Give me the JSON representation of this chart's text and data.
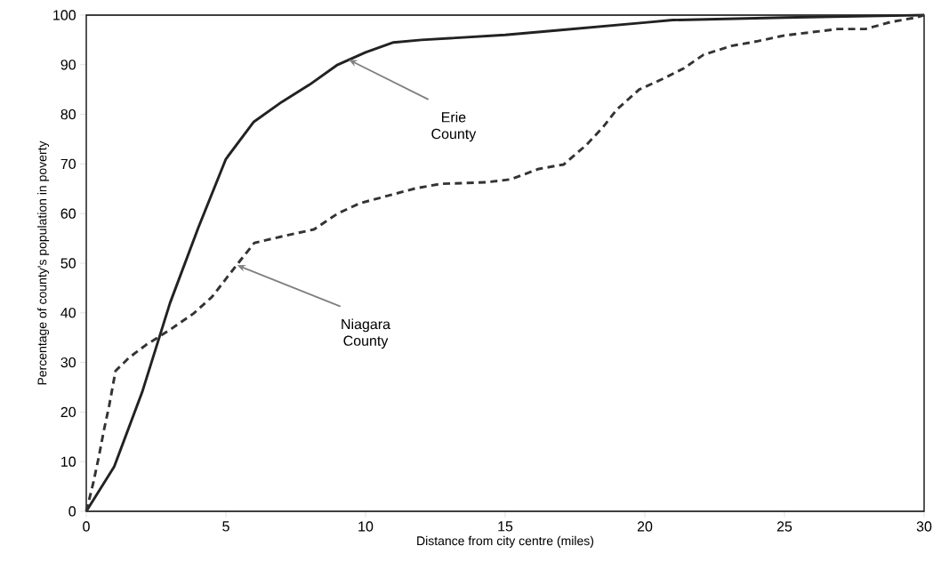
{
  "chart_data": {
    "type": "line",
    "xlabel": "Distance from city centre (miles)",
    "ylabel": "Percentage of county's population in poverty",
    "xlim": [
      0,
      30
    ],
    "xticks": [
      0,
      5,
      10,
      15,
      20,
      25,
      30
    ],
    "ylim": [
      0,
      100
    ],
    "yticks": [
      0,
      10,
      20,
      30,
      40,
      50,
      60,
      70,
      80,
      90,
      100
    ],
    "grid": false,
    "marker": "none",
    "series": [
      {
        "color": "#222222",
        "line_style": "solid",
        "x": [
          0,
          1,
          2,
          3,
          4,
          5,
          6,
          7,
          8,
          9,
          10,
          11,
          12,
          15,
          17,
          20,
          21,
          25,
          30
        ],
        "values": [
          0,
          9,
          24,
          42,
          57,
          71,
          78.5,
          82.5,
          86,
          90,
          92.5,
          94.5,
          95,
          96,
          97,
          98.5,
          99,
          99.5,
          100
        ]
      },
      {
        "color": "#333333",
        "line_style": "dashed",
        "x": [
          0,
          0.25,
          0.45,
          0.63,
          0.82,
          0.99,
          1.05,
          1.52,
          2.13,
          3.0,
          3.85,
          4.5,
          5.09,
          5.55,
          6.02,
          7.09,
          8.15,
          9.0,
          9.8,
          10.8,
          11.8,
          12.7,
          14.3,
          15.2,
          16.2,
          17.1,
          17.9,
          18.5,
          19.0,
          19.8,
          20.7,
          21.4,
          22.1,
          23.1,
          24.0,
          25.0,
          25.9,
          26.9,
          27.9,
          28.8,
          29.7,
          30
        ],
        "values": [
          0,
          5.7,
          11,
          16.3,
          21.3,
          26.5,
          28.3,
          30.9,
          33.5,
          36.6,
          39.9,
          43.2,
          47.5,
          50.8,
          54.1,
          55.5,
          56.8,
          60,
          62.1,
          63.6,
          65.1,
          66,
          66.3,
          66.9,
          69,
          69.9,
          73.8,
          77.4,
          81,
          85,
          87.3,
          89.3,
          92,
          93.8,
          94.7,
          95.9,
          96.5,
          97.2,
          97.2,
          98.6,
          99.5,
          100
        ]
      }
    ],
    "annotations": [
      {
        "text": "Erie County",
        "x": 9.4,
        "y": 91
      },
      {
        "text": "Niagara County",
        "x": 5.4,
        "y": 49.6
      }
    ]
  }
}
